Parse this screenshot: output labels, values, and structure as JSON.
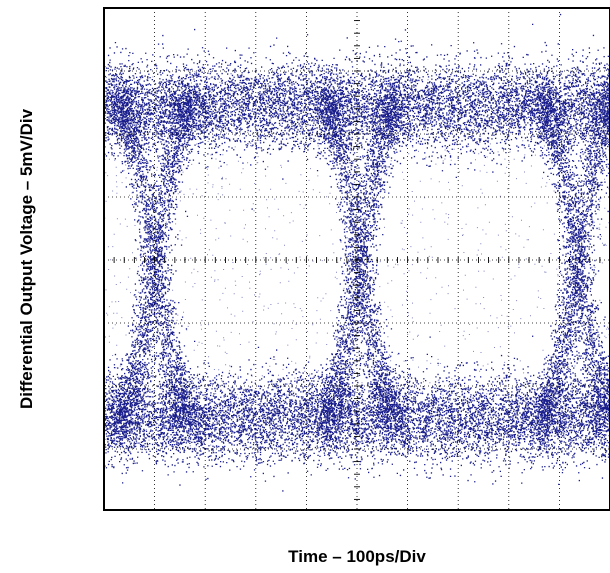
{
  "chart_data": {
    "type": "scatter",
    "subtype": "eye-diagram",
    "title": "",
    "xlabel": "Time – 100ps/Div",
    "ylabel": "Differential Output Voltage – 5mV/Div",
    "x_divisions": 10,
    "y_divisions": 8,
    "x_unit_per_div": "100ps",
    "y_unit_per_div": "5mV",
    "xlim": [
      0,
      10
    ],
    "ylim": [
      -4,
      4
    ],
    "grid": true,
    "grid_style": "dotted",
    "center_axes_ticks": true,
    "legend": "none",
    "trace_color": "#1a1e8c",
    "background_color": "#ffffff",
    "high_level_band": [
      1.7,
      3.2
    ],
    "low_level_band": [
      -3.2,
      -1.8
    ],
    "crossing_points_div": [
      1.0,
      5.05,
      9.35
    ],
    "crossing_level": 0,
    "eye_openings": [
      {
        "x_center": 3.0,
        "x_half_width": 1.55,
        "y_half_height": 1.75
      },
      {
        "x_center": 7.15,
        "x_half_width": 1.55,
        "y_half_height": 1.75
      }
    ]
  }
}
